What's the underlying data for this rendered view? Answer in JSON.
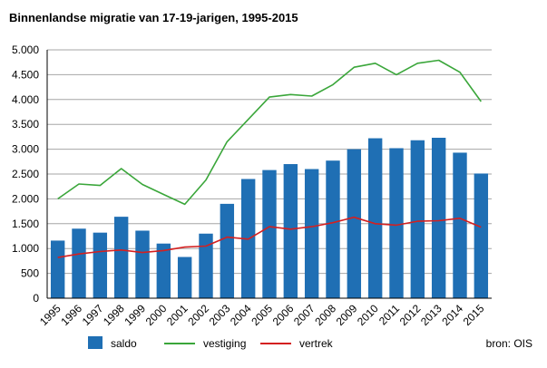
{
  "chart_data": {
    "type": "bar+line",
    "title": "Binnenlandse migratie van 17-19-jarigen, 1995-2015",
    "categories": [
      "1995",
      "1996",
      "1997",
      "1998",
      "1999",
      "2000",
      "2001",
      "2002",
      "2003",
      "2004",
      "2005",
      "2006",
      "2007",
      "2008",
      "2009",
      "2010",
      "2011",
      "2012",
      "2013",
      "2014",
      "2015"
    ],
    "ylim": [
      0,
      5000
    ],
    "yticks": [
      0,
      500,
      1000,
      1500,
      2000,
      2500,
      3000,
      3500,
      4000,
      4500,
      5000
    ],
    "ytick_labels": [
      "0",
      "500",
      "1.000",
      "1.500",
      "2.000",
      "2.500",
      "3.000",
      "3.500",
      "4.000",
      "4.500",
      "5.000"
    ],
    "grid": true,
    "legend_position": "bottom",
    "series": [
      {
        "name": "saldo",
        "kind": "bar",
        "color": "#1f6fb4",
        "values": [
          1160,
          1400,
          1320,
          1640,
          1360,
          1100,
          830,
          1300,
          1900,
          2400,
          2580,
          2700,
          2600,
          2770,
          3000,
          3220,
          3020,
          3180,
          3230,
          2930,
          2510
        ]
      },
      {
        "name": "vestiging",
        "kind": "line",
        "color": "#3aa63a",
        "values": [
          2000,
          2300,
          2270,
          2610,
          2290,
          2090,
          1890,
          2380,
          3150,
          3600,
          4050,
          4100,
          4070,
          4300,
          4650,
          4730,
          4500,
          4730,
          4790,
          4550,
          3960
        ]
      },
      {
        "name": "vertrek",
        "kind": "line",
        "color": "#d42020",
        "values": [
          820,
          890,
          940,
          970,
          920,
          960,
          1030,
          1050,
          1230,
          1190,
          1440,
          1390,
          1440,
          1520,
          1630,
          1500,
          1470,
          1550,
          1560,
          1610,
          1430
        ]
      }
    ],
    "source": "bron: OIS"
  }
}
